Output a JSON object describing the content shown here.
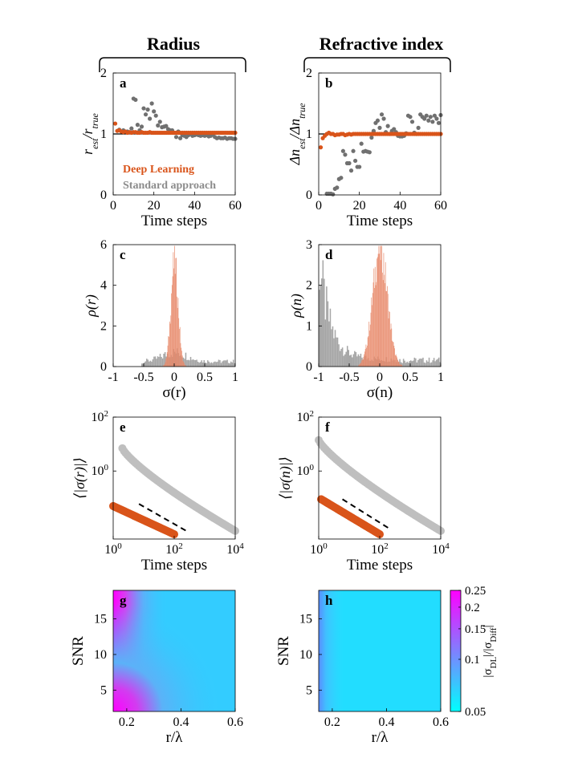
{
  "figure": {
    "column_titles": [
      "Radius",
      "Refractive index"
    ],
    "colors": {
      "deep_learning": "#d9541a",
      "standard": "#707070",
      "standard_light": "#bfbfbf",
      "hist_dl": "#e8896a",
      "hist_std": "#a6a6a6",
      "heat_low": "#00ffff",
      "heat_high": "#ff00ff"
    }
  },
  "chart_data": [
    {
      "id": "a",
      "panel_label": "a",
      "type": "scatter",
      "xlabel": "Time steps",
      "ylabel": "r_est / r_true",
      "xlim": [
        0,
        60
      ],
      "ylim": [
        0,
        2
      ],
      "xticks": [
        "0",
        "20",
        "40",
        "60"
      ],
      "yticks": [
        "0",
        "1",
        "2"
      ],
      "legend": [
        "Deep Learning",
        "Standard approach"
      ],
      "reference_line": 1,
      "series": [
        {
          "name": "Deep Learning",
          "color": "#d9541a",
          "x": [
            1,
            2,
            3,
            4,
            5,
            6,
            7,
            8,
            9,
            10,
            11,
            12,
            13,
            14,
            15,
            16,
            17,
            18,
            19,
            20,
            21,
            22,
            23,
            24,
            25,
            26,
            27,
            28,
            29,
            30,
            31,
            32,
            33,
            34,
            35,
            36,
            37,
            38,
            39,
            40,
            41,
            42,
            43,
            44,
            45,
            46,
            47,
            48,
            49,
            50,
            51,
            52,
            53,
            54,
            55,
            56,
            57,
            58,
            59,
            60
          ],
          "y": [
            1.17,
            1.05,
            1.06,
            1.04,
            1.03,
            1.04,
            1.02,
            1.03,
            1.02,
            1.03,
            1.03,
            1.02,
            1.02,
            1.03,
            1.02,
            1.02,
            1.02,
            1.03,
            1.02,
            1.02,
            1.02,
            1.02,
            1.02,
            1.02,
            1.02,
            1.02,
            1.02,
            1.02,
            1.02,
            1.02,
            1.02,
            1.02,
            1.02,
            1.02,
            1.02,
            1.02,
            1.02,
            1.02,
            1.02,
            1.02,
            1.02,
            1.02,
            1.02,
            1.02,
            1.02,
            1.02,
            1.02,
            1.02,
            1.02,
            1.02,
            1.02,
            1.02,
            1.02,
            1.02,
            1.02,
            1.02,
            1.02,
            1.02,
            1.02,
            1.02
          ]
        },
        {
          "name": "Standard approach",
          "color": "#707070",
          "x": [
            3,
            5,
            7,
            9,
            10,
            11,
            12,
            13,
            14,
            15,
            16,
            17,
            18,
            19,
            20,
            21,
            22,
            23,
            24,
            25,
            26,
            27,
            28,
            29,
            30,
            31,
            32,
            33,
            34,
            35,
            36,
            37,
            38,
            39,
            40,
            41,
            42,
            43,
            44,
            45,
            46,
            47,
            48,
            49,
            50,
            51,
            52,
            53,
            54,
            55,
            56,
            57,
            58,
            59,
            60
          ],
          "y": [
            1.07,
            1.06,
            1.04,
            1.09,
            1.58,
            1.56,
            1.15,
            1.06,
            1.12,
            1.42,
            1.32,
            1.4,
            1.25,
            1.5,
            1.37,
            1.3,
            1.14,
            1.2,
            1.11,
            1.12,
            1.13,
            1.08,
            1.06,
            1.06,
            1.02,
            0.95,
            1.04,
            0.93,
            0.98,
            0.97,
            0.95,
            0.98,
            1.0,
            0.97,
            0.98,
            0.99,
            0.98,
            0.97,
            0.98,
            0.97,
            0.98,
            0.96,
            0.97,
            0.99,
            0.95,
            0.93,
            0.94,
            0.93,
            0.93,
            0.94,
            0.92,
            0.93,
            0.93,
            0.92,
            0.92
          ]
        }
      ]
    },
    {
      "id": "b",
      "panel_label": "b",
      "type": "scatter",
      "xlabel": "Time steps",
      "ylabel": "Δn_est / Δn_true",
      "xlim": [
        0,
        60
      ],
      "ylim": [
        0,
        2
      ],
      "xticks": [
        "0",
        "20",
        "40",
        "60"
      ],
      "yticks": [
        "0",
        "1",
        "2"
      ],
      "reference_line": 1,
      "series": [
        {
          "name": "Deep Learning",
          "color": "#d9541a",
          "x": [
            1,
            2,
            3,
            4,
            5,
            6,
            7,
            8,
            9,
            10,
            11,
            12,
            13,
            14,
            15,
            16,
            17,
            18,
            19,
            20,
            21,
            22,
            23,
            24,
            25,
            26,
            27,
            28,
            29,
            30,
            31,
            32,
            33,
            34,
            35,
            36,
            37,
            38,
            39,
            40,
            41,
            42,
            43,
            44,
            45,
            46,
            47,
            48,
            49,
            50,
            51,
            52,
            53,
            54,
            55,
            56,
            57,
            58,
            59,
            60
          ],
          "y": [
            0.78,
            0.93,
            0.97,
            1.0,
            1.02,
            1.0,
            1.0,
            0.98,
            0.99,
            0.99,
            1.0,
            1.0,
            0.98,
            0.99,
            1.0,
            0.99,
            1.0,
            1.0,
            1.0,
            1.0,
            1.0,
            1.0,
            1.0,
            1.0,
            1.0,
            1.0,
            1.0,
            1.0,
            1.0,
            1.0,
            1.0,
            1.0,
            1.0,
            1.0,
            1.0,
            1.0,
            1.0,
            1.0,
            1.0,
            1.0,
            1.0,
            1.0,
            1.0,
            1.0,
            1.0,
            1.0,
            1.0,
            1.0,
            1.0,
            1.0,
            1.0,
            1.0,
            1.0,
            1.0,
            1.0,
            1.0,
            1.0,
            1.0,
            1.0,
            1.0
          ]
        },
        {
          "name": "Standard approach",
          "color": "#707070",
          "x": [
            4,
            5,
            6,
            7,
            8,
            9,
            10,
            11,
            12,
            13,
            14,
            15,
            16,
            17,
            18,
            19,
            20,
            21,
            22,
            23,
            24,
            25,
            26,
            27,
            28,
            29,
            30,
            31,
            32,
            33,
            34,
            35,
            36,
            37,
            38,
            39,
            40,
            41,
            42,
            43,
            44,
            45,
            46,
            47,
            48,
            49,
            50,
            51,
            52,
            53,
            54,
            55,
            56,
            57,
            58,
            59,
            60
          ],
          "y": [
            0.02,
            0.02,
            0.02,
            0.01,
            0.1,
            0.12,
            0.26,
            0.28,
            0.72,
            0.66,
            0.52,
            0.52,
            0.4,
            0.72,
            0.56,
            0.46,
            0.46,
            0.84,
            0.71,
            0.72,
            0.71,
            0.7,
            0.94,
            1.05,
            1.18,
            1.22,
            1.1,
            1.32,
            1.25,
            1.03,
            1.13,
            1.0,
            1.05,
            1.08,
            1.03,
            0.97,
            0.96,
            0.96,
            0.97,
            1.01,
            1.3,
            1.28,
            1.2,
            1.02,
            1.0,
            1.1,
            1.32,
            1.28,
            1.25,
            1.3,
            1.22,
            1.28,
            1.2,
            1.3,
            1.25,
            1.18,
            1.31
          ]
        }
      ]
    },
    {
      "id": "c",
      "panel_label": "c",
      "type": "histogram",
      "xlabel": "σ(r)",
      "ylabel": "ρ(r)",
      "xlim": [
        -1,
        1
      ],
      "ylim": [
        0,
        6
      ],
      "xticks": [
        "-1",
        "-0.5",
        "0",
        "0.5",
        "1"
      ],
      "yticks": [
        "0",
        "2",
        "4",
        "6"
      ],
      "bin_width": 0.02,
      "bin_start": -0.5,
      "series": [
        {
          "name": "Standard approach",
          "color": "#a6a6a6",
          "distribution": "wide",
          "values": []
        },
        {
          "name": "Deep Learning",
          "color": "#e8896a",
          "center": 0.0,
          "sigma": 0.06,
          "peak": 5.1
        }
      ]
    },
    {
      "id": "d",
      "panel_label": "d",
      "type": "histogram",
      "xlabel": "σ(n)",
      "ylabel": "ρ(n)",
      "xlim": [
        -1,
        1
      ],
      "ylim": [
        0,
        3
      ],
      "xticks": [
        "-1",
        "-0.5",
        "0",
        "0.5",
        "1"
      ],
      "yticks": [
        "0",
        "1",
        "2",
        "3"
      ],
      "series": [
        {
          "name": "Standard approach",
          "color": "#a6a6a6",
          "distribution": "decaying"
        },
        {
          "name": "Deep Learning",
          "color": "#e8896a",
          "center": 0.0,
          "sigma": 0.12,
          "peak": 2.9
        }
      ]
    },
    {
      "id": "e",
      "panel_label": "e",
      "type": "scatter",
      "xlabel": "Time steps",
      "ylabel": "⟨|σ(r)|⟩",
      "xscale": "log",
      "yscale": "log",
      "xlim": [
        1,
        10000
      ],
      "ylim": [
        0.003,
        100
      ],
      "xticks": [
        "10^0",
        "10^2",
        "10^4"
      ],
      "yticks": [
        "10^0",
        "10^2"
      ],
      "series": [
        {
          "name": "Standard approach",
          "color": "#bfbfbf",
          "x_range": [
            2,
            10000
          ],
          "y_start": 7.0,
          "y_end": 0.006
        },
        {
          "name": "Deep Learning",
          "color": "#d9541a",
          "x_range": [
            1,
            100
          ],
          "y_start": 0.05,
          "y_end": 0.0045
        },
        {
          "name": "reference slope",
          "style": "dashed",
          "x_range": [
            7,
            250
          ],
          "y_start": 0.06,
          "y_end": 0.006
        }
      ]
    },
    {
      "id": "f",
      "panel_label": "f",
      "type": "scatter",
      "xlabel": "Time steps",
      "ylabel": "⟨|σ(n)|⟩",
      "xscale": "log",
      "yscale": "log",
      "xlim": [
        1,
        10000
      ],
      "ylim": [
        0.003,
        100
      ],
      "xticks": [
        "10^0",
        "10^2",
        "10^4"
      ],
      "yticks": [
        "10^0",
        "10^2"
      ],
      "series": [
        {
          "name": "Standard approach",
          "color": "#bfbfbf",
          "x_range": [
            1,
            10000
          ],
          "y_start": 14.0,
          "y_end": 0.006
        },
        {
          "name": "Deep Learning",
          "color": "#d9541a",
          "x_range": [
            1.2,
            100
          ],
          "y_start": 0.09,
          "y_end": 0.0045
        },
        {
          "name": "reference slope",
          "style": "dashed",
          "x_range": [
            6,
            220
          ],
          "y_start": 0.09,
          "y_end": 0.007
        }
      ]
    },
    {
      "id": "g",
      "panel_label": "g",
      "type": "heatmap",
      "xlabel": "r/λ",
      "ylabel": "SNR",
      "xlim": [
        0.15,
        0.6
      ],
      "ylim": [
        2,
        19
      ],
      "xticks": [
        "0.2",
        "0.4",
        "0.6"
      ],
      "yticks": [
        "5",
        "10",
        "15"
      ]
    },
    {
      "id": "h",
      "panel_label": "h",
      "type": "heatmap",
      "xlabel": "r/λ",
      "ylabel": "SNR",
      "xlim": [
        0.15,
        0.6
      ],
      "ylim": [
        2,
        19
      ],
      "xticks": [
        "0.2",
        "0.4",
        "0.6"
      ],
      "yticks": [
        "5",
        "10",
        "15"
      ]
    }
  ],
  "colorbar": {
    "label": "|σ_DL| / |σ_Diff|",
    "scale": "log",
    "range": [
      0.05,
      0.25
    ],
    "ticks": [
      "0.05",
      "0.1",
      "0.15",
      "0.2",
      "0.25"
    ]
  }
}
